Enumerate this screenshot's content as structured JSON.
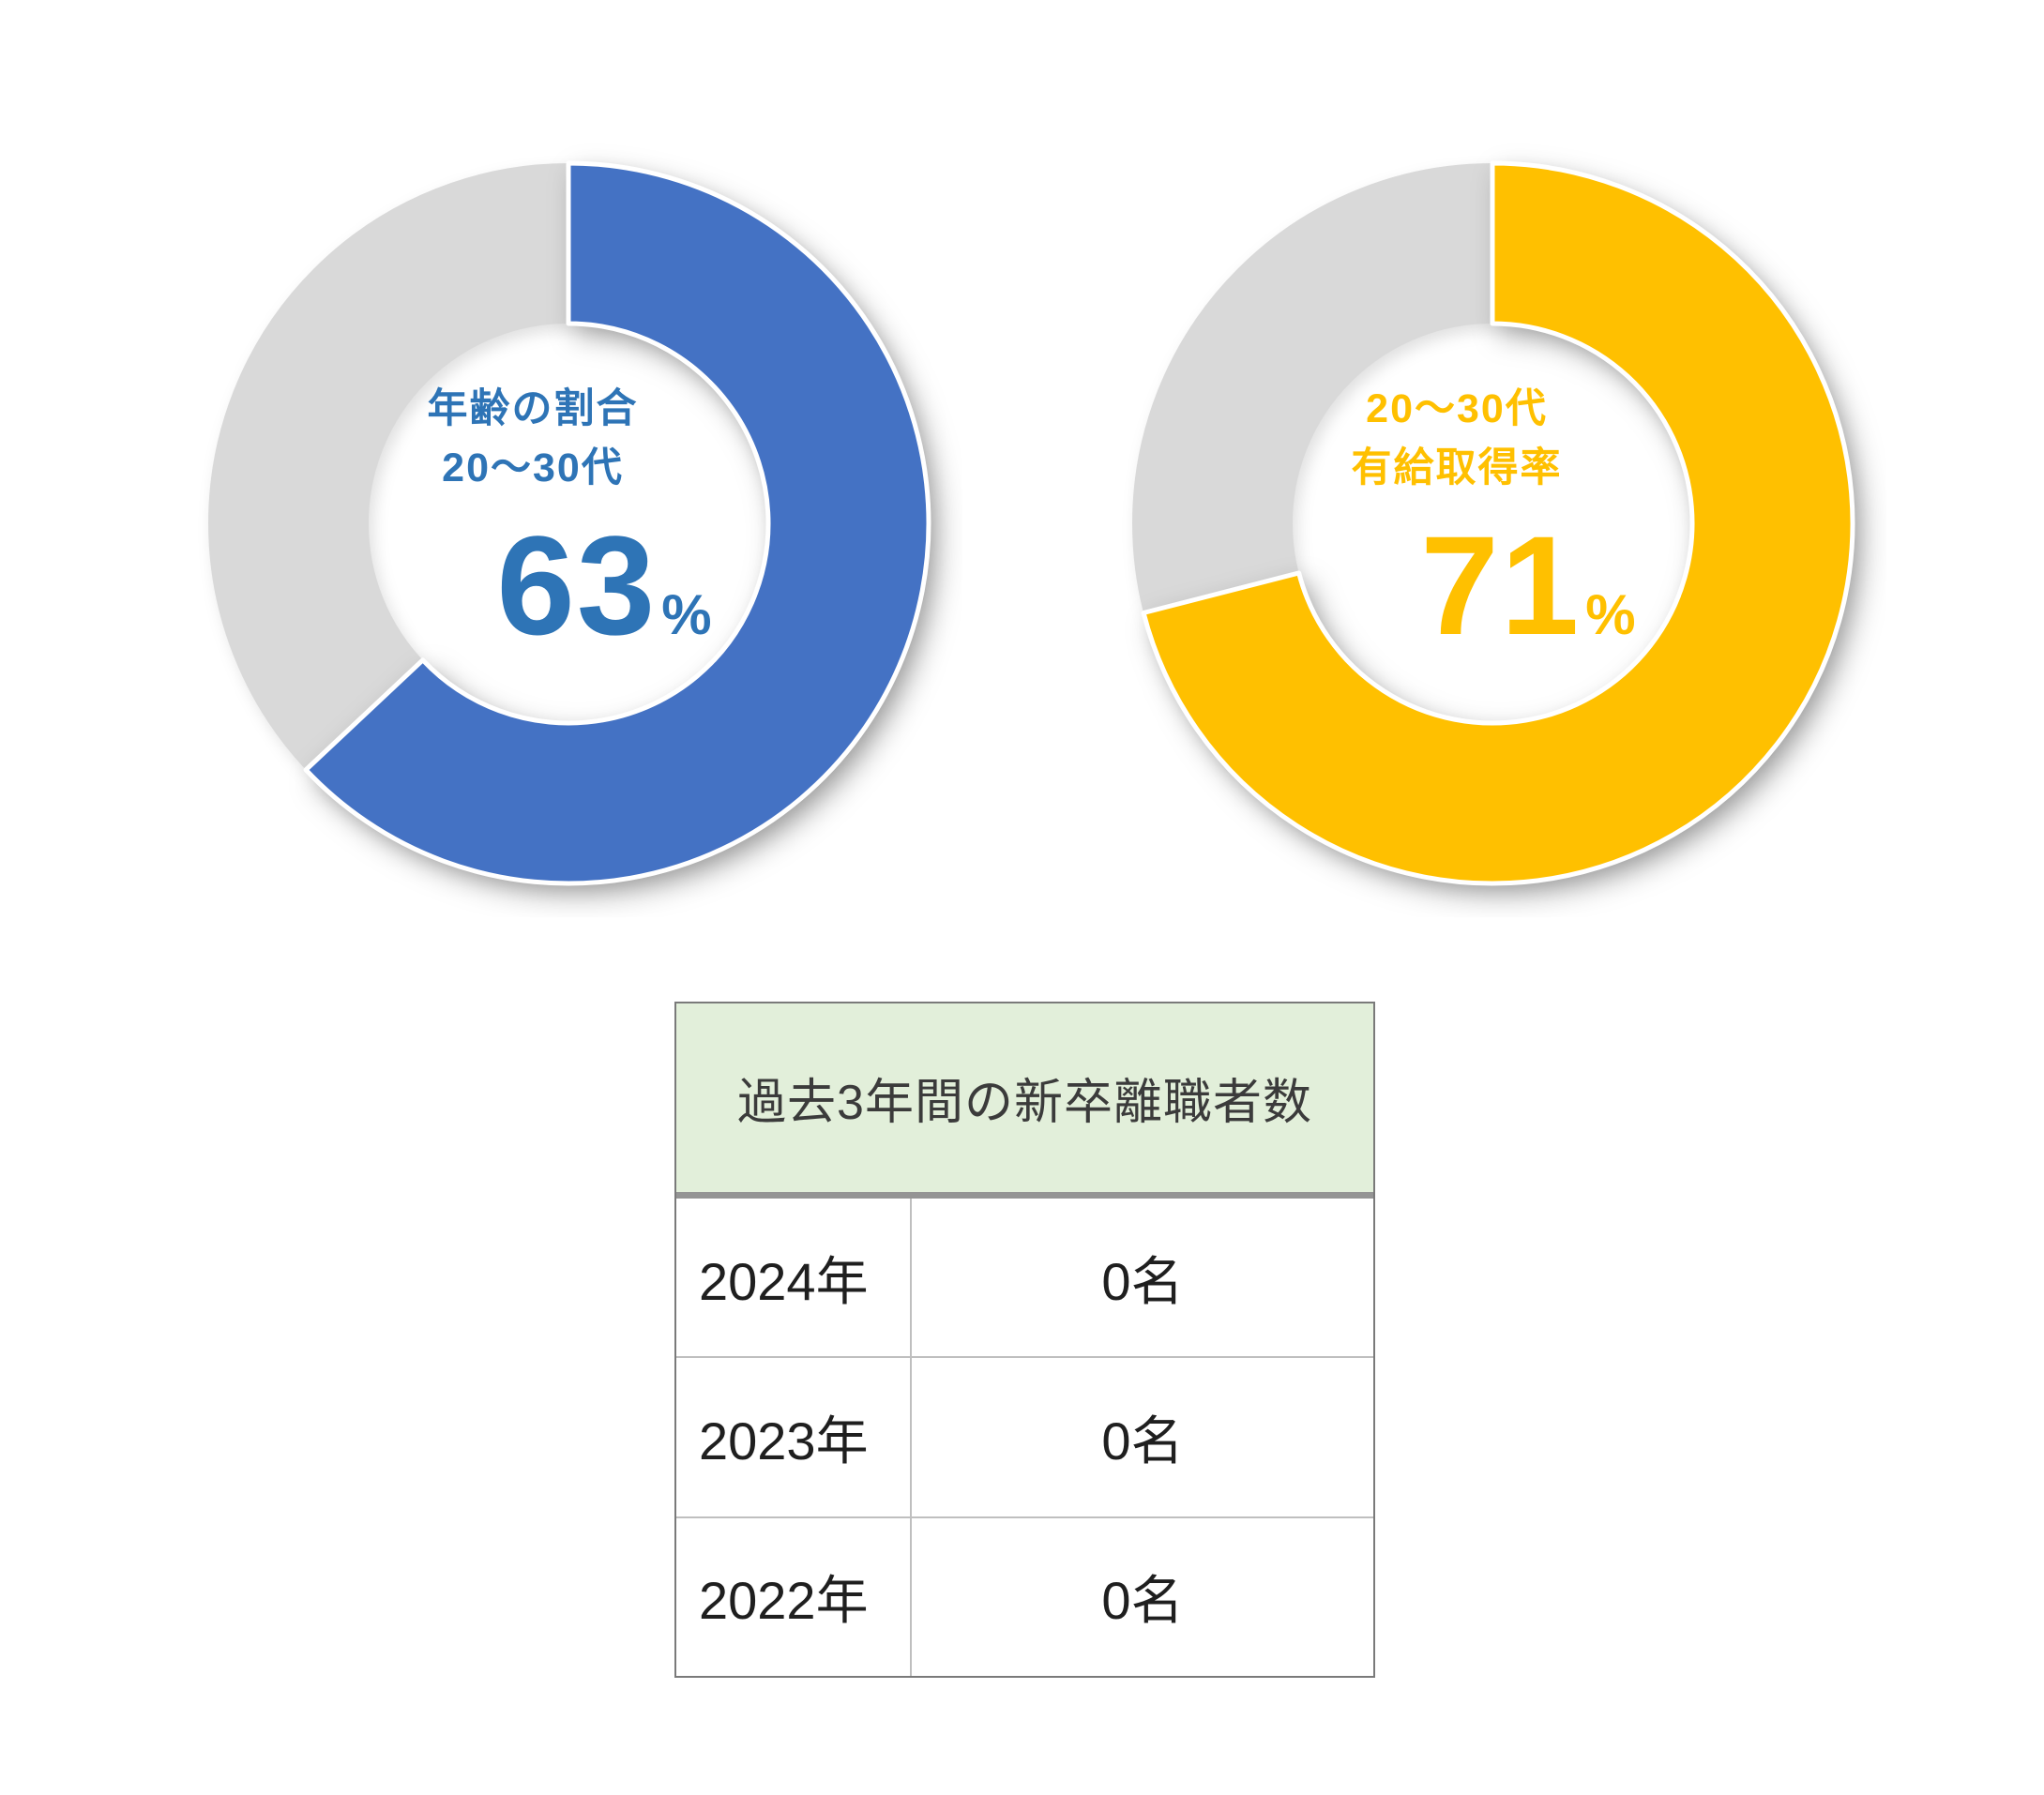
{
  "chart_data": [
    {
      "type": "pie",
      "subtype": "donut",
      "name": "age-ratio-donut",
      "title": "年齢の割合 20〜30代",
      "label_line1": "年齢の割合",
      "label_line2": "20〜30代",
      "value_label": "63",
      "unit": "%",
      "slices": [
        {
          "value": 63,
          "color": "#4472C4"
        },
        {
          "value": 37,
          "color": "#D9D9D9"
        }
      ],
      "text_color": "#2E74B6",
      "start_angle": 0,
      "direction": "clockwise",
      "legend": false
    },
    {
      "type": "pie",
      "subtype": "donut",
      "name": "paid-leave-donut",
      "title": "20〜30代 有給取得率",
      "label_line1": "20〜30代",
      "label_line2": "有給取得率",
      "value_label": "71",
      "unit": "%",
      "slices": [
        {
          "value": 71,
          "color": "#FFC000"
        },
        {
          "value": 29,
          "color": "#D9D9D9"
        }
      ],
      "text_color": "#FFC000",
      "start_angle": 0,
      "direction": "clockwise",
      "legend": false
    },
    {
      "type": "table",
      "name": "new-grad-attrition-table",
      "title": "過去3年間の新卒離職者数",
      "header_bg": "#E2EFDA",
      "rows": [
        [
          "2024年",
          "0名"
        ],
        [
          "2023年",
          "0名"
        ],
        [
          "2022年",
          "0名"
        ]
      ]
    }
  ]
}
